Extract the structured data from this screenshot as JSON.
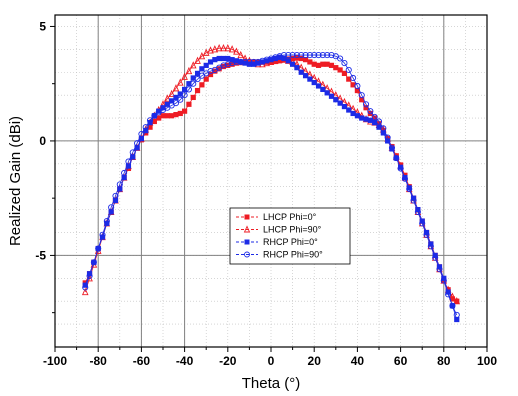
{
  "chart_data": {
    "type": "scatter",
    "title": "",
    "xlabel": "Theta (°)",
    "ylabel": "Realized Gain (dBi)",
    "xlim": [
      -100,
      100
    ],
    "ylim": [
      -9,
      5.5
    ],
    "xticks": [
      -100,
      -80,
      -60,
      -40,
      -20,
      0,
      20,
      40,
      60,
      80,
      100
    ],
    "yticks": [
      5,
      0,
      -5
    ],
    "grid": "dotted minor gridlines, solid gray major lines at x=-80,-60,-40,80 and y=0,-5",
    "legend_position": "center-bottom (inside plot)",
    "series": [
      {
        "name": "LHCP Phi=0°",
        "color": "#ee1c24",
        "marker": "filled-square",
        "x": [
          -86,
          -84,
          -82,
          -80,
          -78,
          -76,
          -74,
          -72,
          -70,
          -68,
          -66,
          -64,
          -62,
          -60,
          -58,
          -56,
          -54,
          -52,
          -50,
          -48,
          -46,
          -44,
          -42,
          -40,
          -38,
          -36,
          -34,
          -32,
          -30,
          -28,
          -26,
          -24,
          -22,
          -20,
          -18,
          -16,
          -14,
          -12,
          -10,
          -8,
          -6,
          -4,
          -2,
          0,
          2,
          4,
          6,
          8,
          10,
          12,
          14,
          16,
          18,
          20,
          22,
          24,
          26,
          28,
          30,
          32,
          34,
          36,
          38,
          40,
          42,
          44,
          46,
          48,
          50,
          52,
          54,
          56,
          58,
          60,
          62,
          64,
          66,
          68,
          70,
          72,
          74,
          76,
          78,
          80,
          82,
          84,
          86
        ],
        "y": [
          -6.2,
          -5.8,
          -5.3,
          -4.7,
          -4.2,
          -3.6,
          -3.1,
          -2.6,
          -2.1,
          -1.6,
          -1.2,
          -0.7,
          -0.3,
          0.05,
          0.35,
          0.6,
          0.85,
          1.0,
          1.1,
          1.1,
          1.1,
          1.15,
          1.2,
          1.3,
          1.6,
          1.9,
          2.2,
          2.45,
          2.7,
          2.9,
          3.05,
          3.15,
          3.25,
          3.3,
          3.35,
          3.4,
          3.42,
          3.44,
          3.45,
          3.45,
          3.44,
          3.44,
          3.44,
          3.45,
          3.47,
          3.5,
          3.55,
          3.58,
          3.6,
          3.62,
          3.6,
          3.55,
          3.45,
          3.35,
          3.3,
          3.35,
          3.35,
          3.3,
          3.2,
          3.1,
          2.95,
          2.7,
          2.45,
          2.2,
          1.8,
          1.45,
          1.2,
          1.0,
          0.75,
          0.45,
          0.1,
          -0.25,
          -0.65,
          -1.05,
          -1.5,
          -2.0,
          -2.5,
          -3.0,
          -3.5,
          -4.0,
          -4.5,
          -5.0,
          -5.5,
          -6.1,
          -6.5,
          -6.9,
          -7.0
        ]
      },
      {
        "name": "LHCP Phi=90°",
        "color": "#ee1c24",
        "marker": "open-triangle",
        "x": [
          -86,
          -84,
          -82,
          -80,
          -78,
          -76,
          -74,
          -72,
          -70,
          -68,
          -66,
          -64,
          -62,
          -60,
          -58,
          -56,
          -54,
          -52,
          -50,
          -48,
          -46,
          -44,
          -42,
          -40,
          -38,
          -36,
          -34,
          -32,
          -30,
          -28,
          -26,
          -24,
          -22,
          -20,
          -18,
          -16,
          -14,
          -12,
          -10,
          -8,
          -6,
          -4,
          -2,
          0,
          2,
          4,
          6,
          8,
          10,
          12,
          14,
          16,
          18,
          20,
          22,
          24,
          26,
          28,
          30,
          32,
          34,
          36,
          38,
          40,
          42,
          44,
          46,
          48,
          50,
          52,
          54,
          56,
          58,
          60,
          62,
          64,
          66,
          68,
          70,
          72,
          74,
          76,
          78,
          80,
          82,
          84,
          86
        ],
        "y": [
          -6.6,
          -6.0,
          -5.4,
          -4.8,
          -4.2,
          -3.6,
          -3.1,
          -2.6,
          -2.1,
          -1.6,
          -1.1,
          -0.7,
          -0.3,
          0.1,
          0.5,
          0.8,
          1.1,
          1.35,
          1.6,
          1.85,
          2.05,
          2.3,
          2.55,
          2.8,
          3.05,
          3.3,
          3.5,
          3.7,
          3.85,
          3.95,
          4.0,
          4.05,
          4.05,
          4.05,
          4.0,
          3.9,
          3.75,
          3.6,
          3.5,
          3.4,
          3.35,
          3.35,
          3.4,
          3.45,
          3.5,
          3.55,
          3.55,
          3.5,
          3.45,
          3.35,
          3.2,
          3.05,
          2.9,
          2.75,
          2.6,
          2.45,
          2.3,
          2.15,
          2.0,
          1.85,
          1.7,
          1.55,
          1.4,
          1.25,
          1.1,
          0.95,
          0.85,
          0.8,
          0.7,
          0.5,
          0.1,
          -0.3,
          -0.7,
          -1.1,
          -1.6,
          -2.1,
          -2.6,
          -3.1,
          -3.6,
          -4.1,
          -4.6,
          -5.1,
          -5.6,
          -6.1,
          -6.5,
          -6.8,
          -7.0
        ]
      },
      {
        "name": "RHCP Phi=0°",
        "color": "#1c2be6",
        "marker": "filled-square",
        "x": [
          -86,
          -84,
          -82,
          -80,
          -78,
          -76,
          -74,
          -72,
          -70,
          -68,
          -66,
          -64,
          -62,
          -60,
          -58,
          -56,
          -54,
          -52,
          -50,
          -48,
          -46,
          -44,
          -42,
          -40,
          -38,
          -36,
          -34,
          -32,
          -30,
          -28,
          -26,
          -24,
          -22,
          -20,
          -18,
          -16,
          -14,
          -12,
          -10,
          -8,
          -6,
          -4,
          -2,
          0,
          2,
          4,
          6,
          8,
          10,
          12,
          14,
          16,
          18,
          20,
          22,
          24,
          26,
          28,
          30,
          32,
          34,
          36,
          38,
          40,
          42,
          44,
          46,
          48,
          50,
          52,
          54,
          56,
          58,
          60,
          62,
          64,
          66,
          68,
          70,
          72,
          74,
          76,
          78,
          80,
          82,
          84,
          86
        ],
        "y": [
          -6.3,
          -5.8,
          -5.3,
          -4.7,
          -4.2,
          -3.6,
          -3.1,
          -2.6,
          -2.1,
          -1.6,
          -1.1,
          -0.7,
          -0.3,
          0.1,
          0.45,
          0.8,
          1.1,
          1.3,
          1.45,
          1.6,
          1.75,
          1.9,
          2.05,
          2.25,
          2.5,
          2.75,
          2.95,
          3.15,
          3.3,
          3.45,
          3.55,
          3.6,
          3.6,
          3.6,
          3.55,
          3.5,
          3.45,
          3.4,
          3.35,
          3.35,
          3.4,
          3.45,
          3.5,
          3.55,
          3.6,
          3.65,
          3.6,
          3.5,
          3.35,
          3.2,
          3.0,
          2.85,
          2.7,
          2.55,
          2.4,
          2.25,
          2.1,
          1.95,
          1.8,
          1.65,
          1.5,
          1.35,
          1.2,
          1.1,
          1.0,
          0.95,
          0.9,
          0.8,
          0.6,
          0.35,
          0.0,
          -0.35,
          -0.75,
          -1.15,
          -1.6,
          -2.05,
          -2.5,
          -3.0,
          -3.5,
          -4.0,
          -4.5,
          -5.0,
          -5.5,
          -6.0,
          -6.6,
          -7.2,
          -7.8
        ]
      },
      {
        "name": "RHCP Phi=90°",
        "color": "#1c2be6",
        "marker": "open-circle",
        "x": [
          -86,
          -84,
          -82,
          -80,
          -78,
          -76,
          -74,
          -72,
          -70,
          -68,
          -66,
          -64,
          -62,
          -60,
          -58,
          -56,
          -54,
          -52,
          -50,
          -48,
          -46,
          -44,
          -42,
          -40,
          -38,
          -36,
          -34,
          -32,
          -30,
          -28,
          -26,
          -24,
          -22,
          -20,
          -18,
          -16,
          -14,
          -12,
          -10,
          -8,
          -6,
          -4,
          -2,
          0,
          2,
          4,
          6,
          8,
          10,
          12,
          14,
          16,
          18,
          20,
          22,
          24,
          26,
          28,
          30,
          32,
          34,
          36,
          38,
          40,
          42,
          44,
          46,
          48,
          50,
          52,
          54,
          56,
          58,
          60,
          62,
          64,
          66,
          68,
          70,
          72,
          74,
          76,
          78,
          80,
          82,
          84,
          86
        ],
        "y": [
          -6.4,
          -5.9,
          -5.3,
          -4.7,
          -4.1,
          -3.5,
          -2.9,
          -2.4,
          -1.9,
          -1.4,
          -0.9,
          -0.5,
          -0.1,
          0.3,
          0.6,
          0.9,
          1.1,
          1.25,
          1.35,
          1.45,
          1.55,
          1.65,
          1.8,
          2.0,
          2.25,
          2.5,
          2.7,
          2.85,
          2.95,
          3.05,
          3.1,
          3.2,
          3.3,
          3.35,
          3.4,
          3.45,
          3.45,
          3.45,
          3.45,
          3.45,
          3.45,
          3.5,
          3.55,
          3.6,
          3.65,
          3.7,
          3.75,
          3.75,
          3.75,
          3.75,
          3.75,
          3.75,
          3.75,
          3.75,
          3.75,
          3.75,
          3.75,
          3.75,
          3.7,
          3.6,
          3.4,
          3.1,
          2.75,
          2.4,
          2.0,
          1.6,
          1.3,
          1.05,
          0.85,
          0.55,
          0.15,
          -0.3,
          -0.75,
          -1.2,
          -1.65,
          -2.1,
          -2.6,
          -3.1,
          -3.6,
          -4.1,
          -4.6,
          -5.1,
          -5.6,
          -6.1,
          -6.7,
          -7.2,
          -7.6
        ]
      }
    ]
  }
}
